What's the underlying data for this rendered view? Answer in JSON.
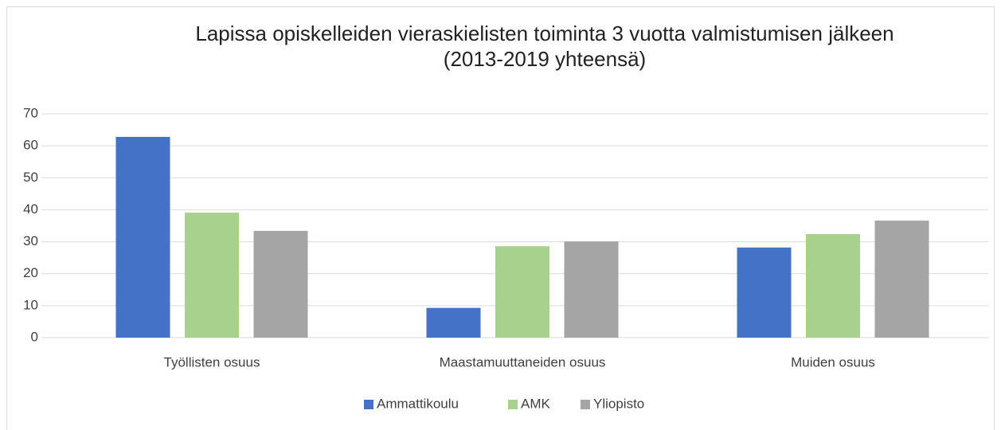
{
  "chart_data": {
    "type": "bar",
    "title": [
      "Lapissa opiskelleiden vieraskielisten toiminta 3 vuotta valmistumisen jälkeen",
      "(2013-2019 yhteensä)"
    ],
    "categories": [
      "Työllisten osuus",
      "Maastamuuttaneiden osuus",
      "Muiden osuus"
    ],
    "series": [
      {
        "name": "Ammattikoulu",
        "color": "#4472c4",
        "values": [
          62.8,
          9.3,
          28.2
        ]
      },
      {
        "name": "AMK",
        "color": "#a9d18e",
        "values": [
          39.1,
          28.6,
          32.4
        ]
      },
      {
        "name": "Yliopisto",
        "color": "#a5a5a5",
        "values": [
          33.4,
          30.1,
          36.6
        ]
      }
    ],
    "ylim": [
      0,
      70
    ],
    "yticks": [
      0,
      10,
      20,
      30,
      40,
      50,
      60,
      70
    ],
    "grid": true,
    "legend": "bottom"
  }
}
